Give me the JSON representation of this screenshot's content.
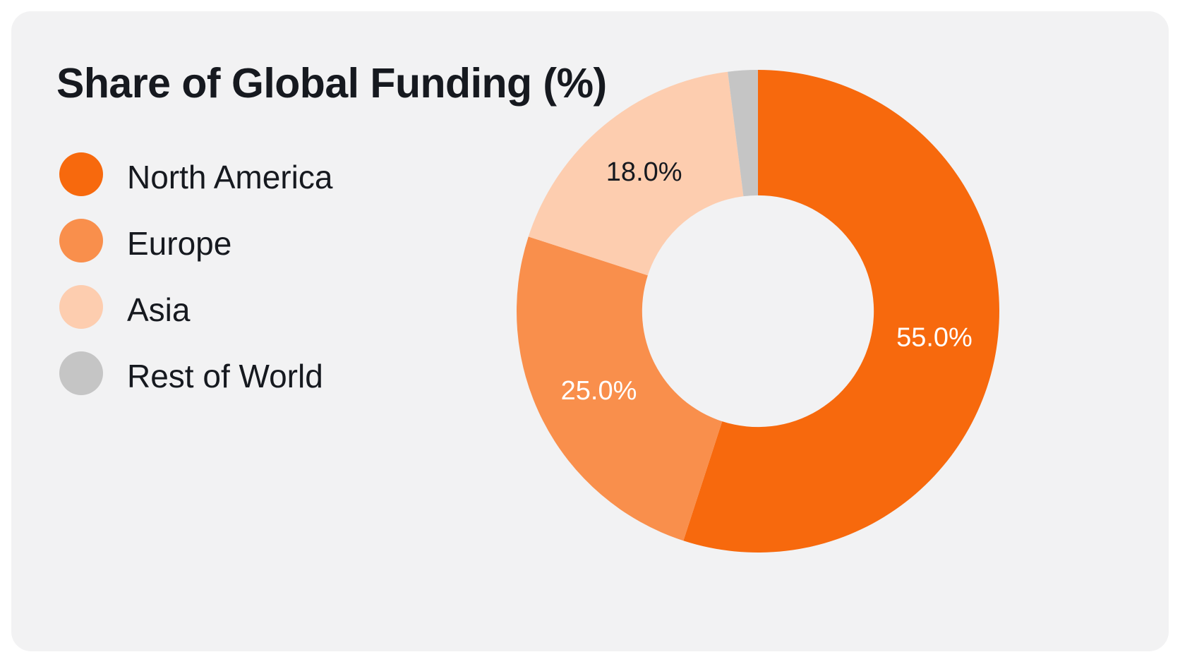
{
  "chart_data": {
    "type": "pie",
    "title": "Share of Global Funding (%)",
    "inner_radius_ratio": 0.48,
    "start_angle_deg": 0,
    "direction": "clockwise",
    "legend_position": "left",
    "slices": [
      {
        "label": "North America",
        "value": 55.0,
        "display": "55.0%",
        "color": "#f7690d",
        "label_color": "#ffffff"
      },
      {
        "label": "Europe",
        "value": 25.0,
        "display": "25.0%",
        "color": "#f98f4c",
        "label_color": "#ffffff"
      },
      {
        "label": "Asia",
        "value": 18.0,
        "display": "18.0%",
        "color": "#fdcdaf",
        "label_color": "#16191f"
      },
      {
        "label": "Rest of World",
        "value": 2.0,
        "display": "",
        "color": "#c5c5c5",
        "label_color": "#16191f"
      }
    ]
  }
}
